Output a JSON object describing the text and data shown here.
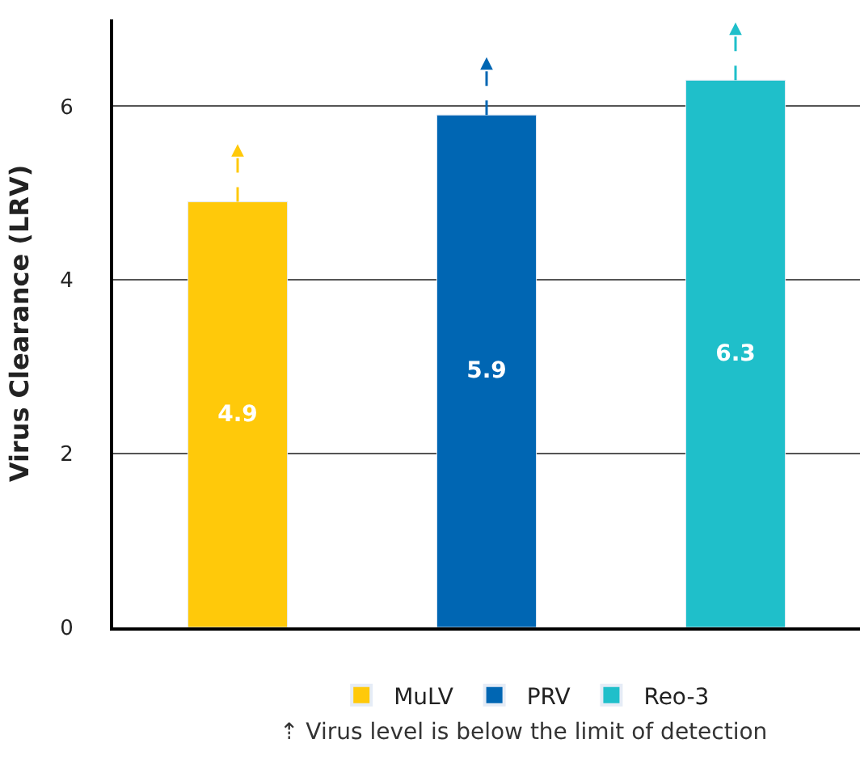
{
  "chart_data": {
    "type": "bar",
    "ylabel": "Virus Clearance (LRV)",
    "categories": [
      null,
      null,
      null
    ],
    "series": [
      {
        "name": "MuLV",
        "color": "#ffc90a",
        "values": [
          4.9,
          null,
          null
        ]
      },
      {
        "name": "PRV",
        "color": "#0066b3",
        "values": [
          null,
          5.9,
          null
        ]
      },
      {
        "name": "Reo-3",
        "color": "#1fbfca",
        "values": [
          null,
          null,
          6.3
        ]
      }
    ],
    "ylim": [
      0,
      7
    ],
    "yticks": [
      0,
      2,
      4,
      6
    ],
    "grid": "y",
    "legend": "bottom",
    "data_labels": true,
    "annotations": [
      "⇡ Virus level is below the limit of detection"
    ]
  }
}
